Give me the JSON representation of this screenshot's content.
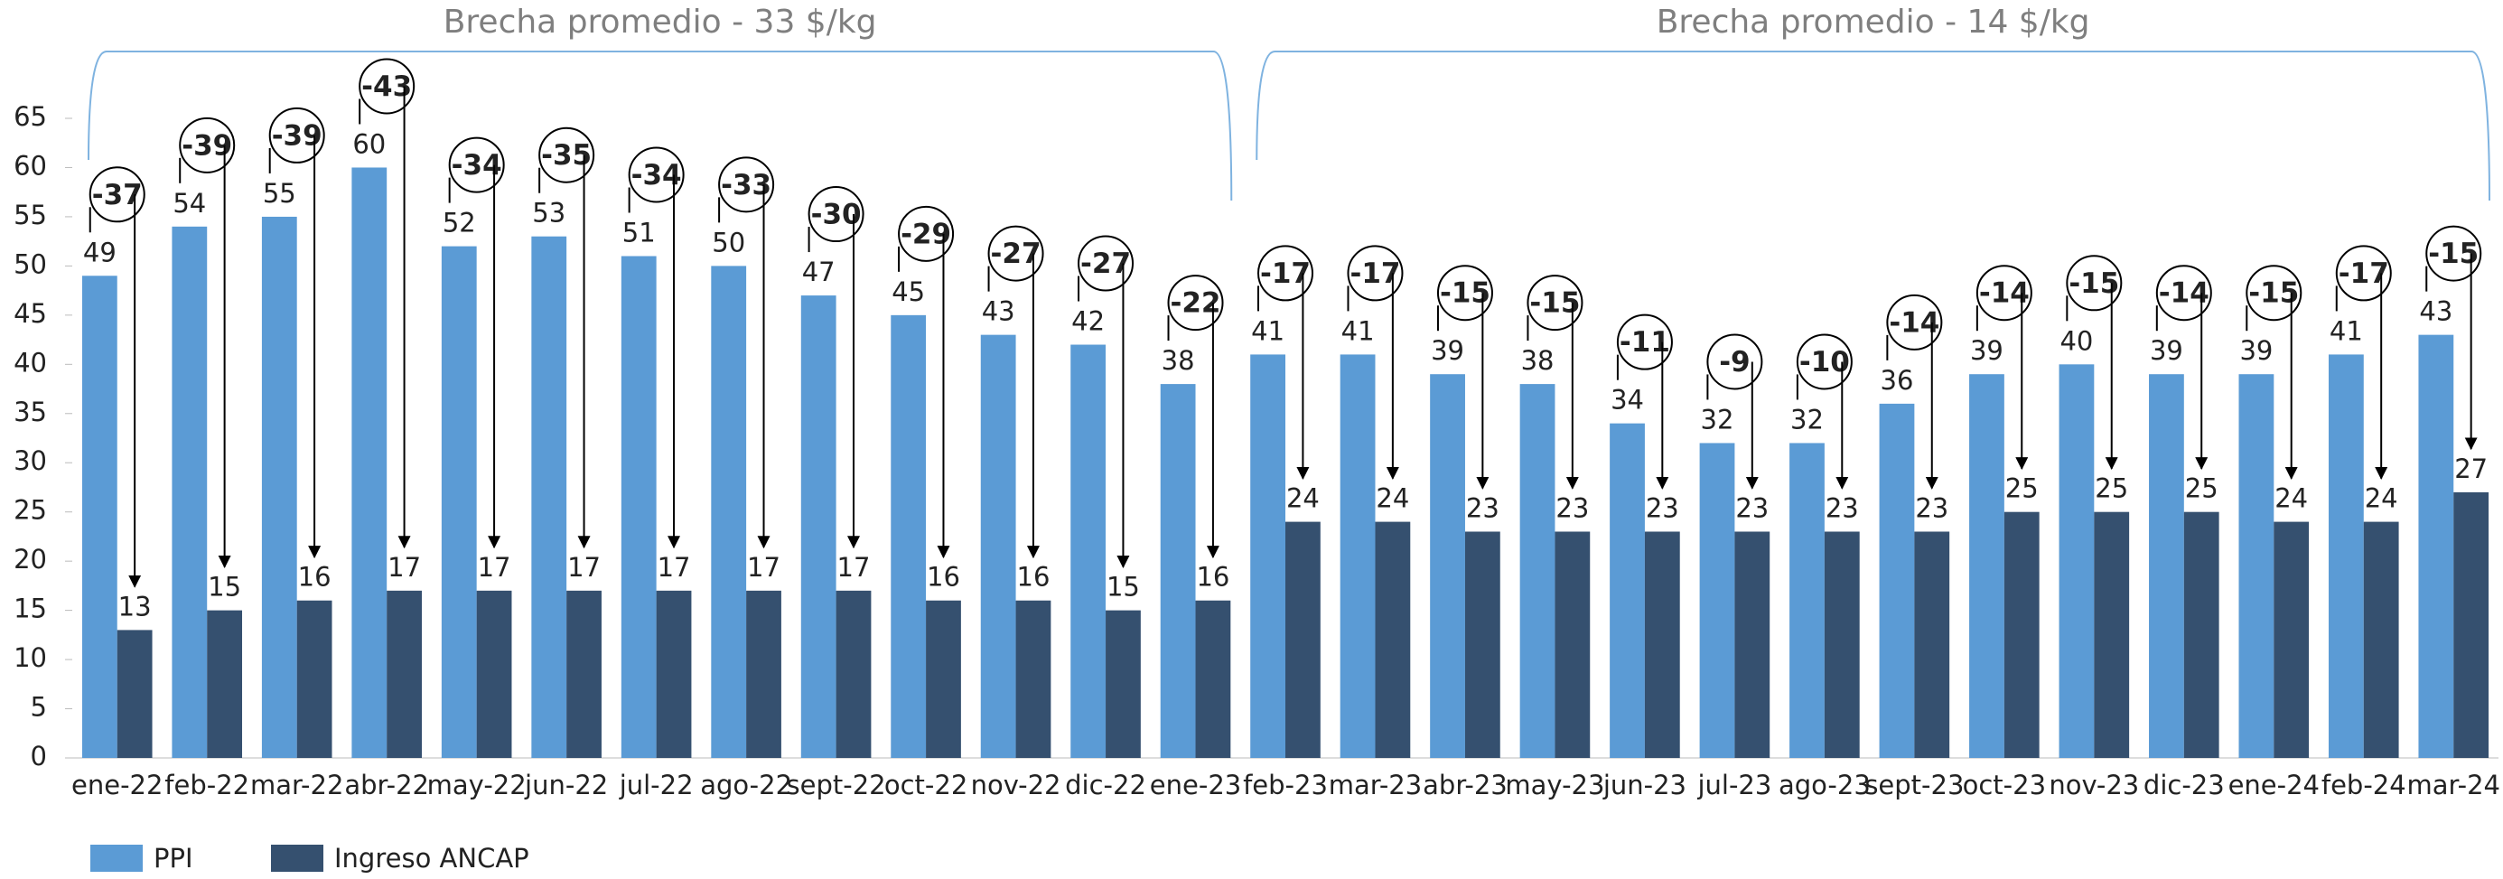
{
  "chart_data": {
    "type": "bar",
    "categories": [
      "ene-22",
      "feb-22",
      "mar-22",
      "abr-22",
      "may-22",
      "jun-22",
      "jul-22",
      "ago-22",
      "sept-22",
      "oct-22",
      "nov-22",
      "dic-22",
      "ene-23",
      "feb-23",
      "mar-23",
      "abr-23",
      "may-23",
      "jun-23",
      "jul-23",
      "ago-23",
      "sept-23",
      "oct-23",
      "nov-23",
      "dic-23",
      "ene-24",
      "feb-24",
      "mar-24"
    ],
    "series": [
      {
        "name": "PPI",
        "color": "#5b9bd5",
        "values": [
          49,
          54,
          55,
          60,
          52,
          53,
          51,
          50,
          47,
          45,
          43,
          42,
          38,
          41,
          41,
          39,
          38,
          34,
          32,
          32,
          36,
          39,
          40,
          39,
          39,
          41,
          43
        ]
      },
      {
        "name": "Ingreso ANCAP",
        "color": "#35506f",
        "values": [
          13,
          15,
          16,
          17,
          17,
          17,
          17,
          17,
          17,
          16,
          16,
          15,
          16,
          24,
          24,
          23,
          23,
          23,
          23,
          23,
          23,
          25,
          25,
          25,
          24,
          24,
          27
        ]
      }
    ],
    "gaps": [
      -37,
      -39,
      -39,
      -43,
      -34,
      -35,
      -34,
      -33,
      -30,
      -29,
      -27,
      -27,
      -22,
      -17,
      -17,
      -15,
      -15,
      -11,
      -9,
      -10,
      -14,
      -14,
      -15,
      -14,
      -15,
      -17,
      -15
    ],
    "annotations": [
      {
        "text": "Brecha promedio - 33 $/kg",
        "from": "ene-22",
        "to": "ene-23"
      },
      {
        "text": "Brecha promedio - 14 $/kg",
        "from": "feb-23",
        "to": "mar-24"
      }
    ],
    "ylim": [
      0,
      65
    ],
    "yticks": [
      0,
      5,
      10,
      15,
      20,
      25,
      30,
      35,
      40,
      45,
      50,
      55,
      60,
      65
    ],
    "legend": "bottom-left"
  }
}
